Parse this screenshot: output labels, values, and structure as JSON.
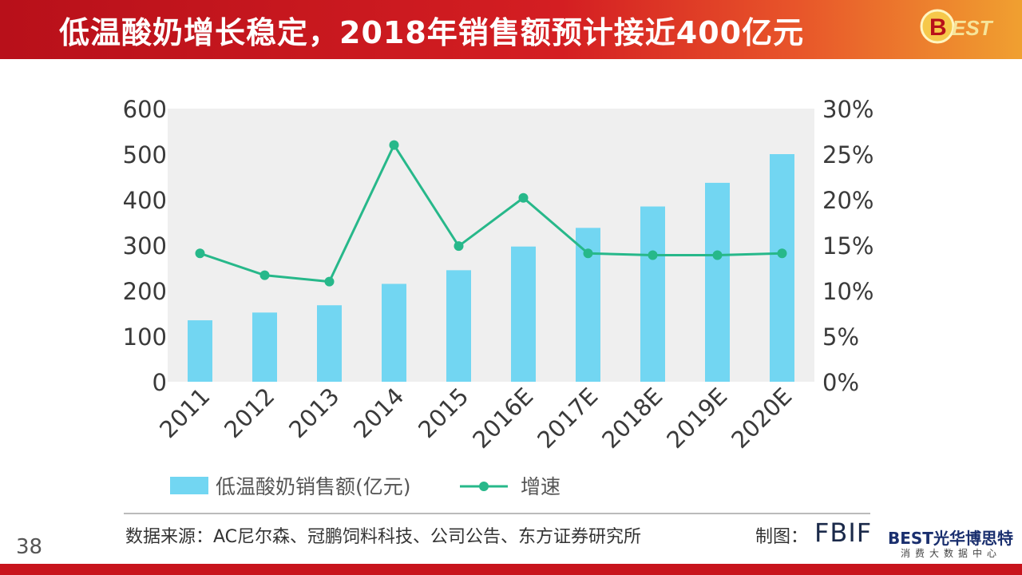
{
  "header": {
    "title": "低温酸奶增长稳定，2018年销售额预计接近400亿元",
    "logo_text": "BEST"
  },
  "colors": {
    "header_red": "#c8141c",
    "bar": "#72d6f2",
    "line": "#27b88a",
    "plot_bg": "#efefef"
  },
  "chart_data": {
    "type": "bar",
    "categories": [
      "2011",
      "2012",
      "2013",
      "2014",
      "2015",
      "2016E",
      "2017E",
      "2018E",
      "2019E",
      "2020E"
    ],
    "series": [
      {
        "name": "低温酸奶销售额(亿元)",
        "type": "bar",
        "axis": "left",
        "values": [
          135,
          152,
          168,
          215,
          245,
          297,
          338,
          385,
          437,
          500
        ]
      },
      {
        "name": "增速",
        "type": "line",
        "axis": "right",
        "values": [
          14.1,
          11.7,
          11.0,
          26.0,
          14.9,
          20.2,
          14.1,
          13.9,
          13.9,
          14.1
        ]
      }
    ],
    "y_left": {
      "ylim": [
        0,
        600
      ],
      "ticks": [
        "0",
        "100",
        "200",
        "300",
        "400",
        "500",
        "600"
      ]
    },
    "y_right": {
      "ylim": [
        0,
        30
      ],
      "ticks": [
        "0%",
        "5%",
        "10%",
        "15%",
        "20%",
        "25%",
        "30%"
      ]
    },
    "legend": {
      "position": "bottom-left",
      "bar_label": "低温酸奶销售额(亿元)",
      "line_label": "增速"
    }
  },
  "footer": {
    "source": "数据来源：AC尼尔森、冠鹏饲料科技、公司公告、东方证券研究所",
    "made_by_label": "制图：",
    "made_by": "FBIF",
    "page_number": "38",
    "brand_name": "BEST光华博思特",
    "brand_sub": "消费大数据中心"
  }
}
